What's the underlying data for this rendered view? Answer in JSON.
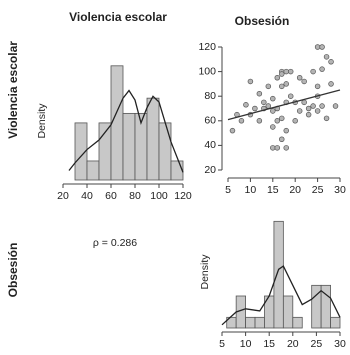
{
  "chart_data": [
    {
      "type": "histogram",
      "title": "Violencia escolar",
      "row_label": "Violencia escolar",
      "y_label": "Density",
      "bins": [
        30,
        40,
        50,
        60,
        70,
        80,
        90,
        100,
        110,
        120
      ],
      "values": [
        3,
        1,
        3,
        6,
        3.5,
        3.5,
        4.3,
        3,
        1
      ],
      "density": {
        "x": [
          25,
          30,
          40,
          50,
          60,
          70,
          75,
          80,
          85,
          90,
          95,
          100,
          110,
          120
        ],
        "values": [
          0.5,
          0.9,
          1.6,
          2.1,
          2.9,
          4.3,
          4.7,
          4.2,
          3.0,
          3.8,
          4.4,
          4.1,
          2.0,
          0.4
        ]
      },
      "color": "#c8c8c8",
      "xlim": [
        20,
        120
      ],
      "xticks": [
        20,
        40,
        60,
        80,
        100,
        120
      ],
      "ylim": [
        0,
        6.2
      ]
    },
    {
      "type": "scatter",
      "title": "Obsesión",
      "x": [
        6,
        7,
        8,
        9,
        10,
        10,
        11,
        12,
        12,
        13,
        13,
        14,
        14,
        15,
        15,
        15,
        15,
        16,
        16,
        16,
        16,
        17,
        17,
        17,
        17,
        17,
        18,
        18,
        18,
        18,
        18,
        19,
        19,
        20,
        20,
        21,
        21,
        22,
        22,
        23,
        23,
        24,
        24,
        25,
        25,
        25,
        25,
        26,
        26,
        26,
        27,
        27,
        28,
        28,
        29
      ],
      "values": [
        52,
        65,
        60,
        73,
        92,
        65,
        70,
        82,
        60,
        75,
        70,
        88,
        72,
        38,
        55,
        68,
        78,
        38,
        60,
        70,
        95,
        100,
        98,
        88,
        62,
        45,
        100,
        90,
        75,
        38,
        52,
        100,
        80,
        60,
        75,
        95,
        68,
        75,
        92,
        70,
        65,
        100,
        72,
        80,
        88,
        120,
        68,
        120,
        72,
        102,
        112,
        62,
        90,
        108,
        72
      ],
      "fit": {
        "x": [
          5,
          30
        ],
        "values": [
          61,
          85
        ]
      },
      "color": "#b4b4b4",
      "xlim": [
        5,
        30
      ],
      "xticks": [
        5,
        10,
        15,
        20,
        25,
        30
      ],
      "ylim": [
        20,
        120
      ],
      "yticks": [
        20,
        40,
        60,
        80,
        100,
        120
      ]
    },
    {
      "type": "text",
      "text": "ρ = 0.286"
    },
    {
      "type": "histogram",
      "row_label": "Obsesión",
      "y_label": "Density",
      "bins": [
        6,
        8,
        10,
        12,
        14,
        16,
        18,
        20,
        22,
        24,
        26,
        28,
        30
      ],
      "values": [
        1,
        3,
        1,
        1,
        3,
        10,
        3,
        1,
        0,
        4,
        4,
        1
      ],
      "density": {
        "x": [
          5,
          8,
          10,
          13,
          15,
          17,
          18,
          20,
          22,
          24,
          26,
          28,
          30
        ],
        "values": [
          0.3,
          1.5,
          1.8,
          1.6,
          3,
          5.5,
          5.8,
          4,
          2.2,
          2.7,
          3.5,
          2.8,
          1
        ]
      },
      "color": "#c8c8c8",
      "xlim": [
        5,
        30
      ],
      "xticks": [
        5,
        10,
        15,
        20,
        25,
        30
      ],
      "ylim": [
        0,
        10.5
      ]
    }
  ]
}
